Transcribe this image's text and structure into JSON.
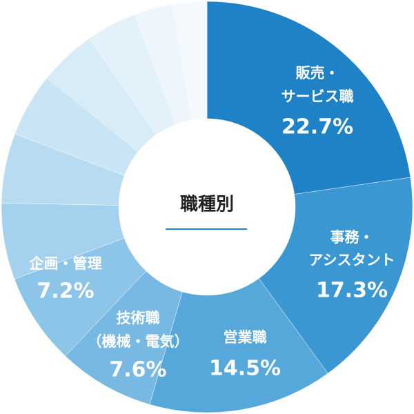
{
  "chart_data": {
    "type": "pie",
    "title": "職種別",
    "categories": [
      [
        "販売・",
        "サービス職"
      ],
      [
        "事務・",
        "アシスタント"
      ],
      [
        "営業職"
      ],
      [
        "技術職",
        "（機械・電気）"
      ],
      [
        "企画・管理"
      ],
      null,
      null,
      null,
      null,
      null,
      null,
      null
    ],
    "values": [
      22.7,
      17.3,
      14.5,
      7.6,
      7.2,
      6.0,
      5.5,
      5.0,
      4.5,
      4.0,
      3.0,
      2.7
    ],
    "value_labels": [
      "22.7%",
      "17.3%",
      "14.5%",
      "7.6%",
      "7.2%",
      null,
      null,
      null,
      null,
      null,
      null,
      null
    ],
    "colors": [
      "#1f82c6",
      "#3a97d2",
      "#56a8da",
      "#77b9e2",
      "#8cc5e8",
      "#a4d1ed",
      "#b7dbf1",
      "#c9e4f4",
      "#d8ecf7",
      "#e3f1fa",
      "#ecf6fc",
      "#f3f9fd"
    ]
  }
}
